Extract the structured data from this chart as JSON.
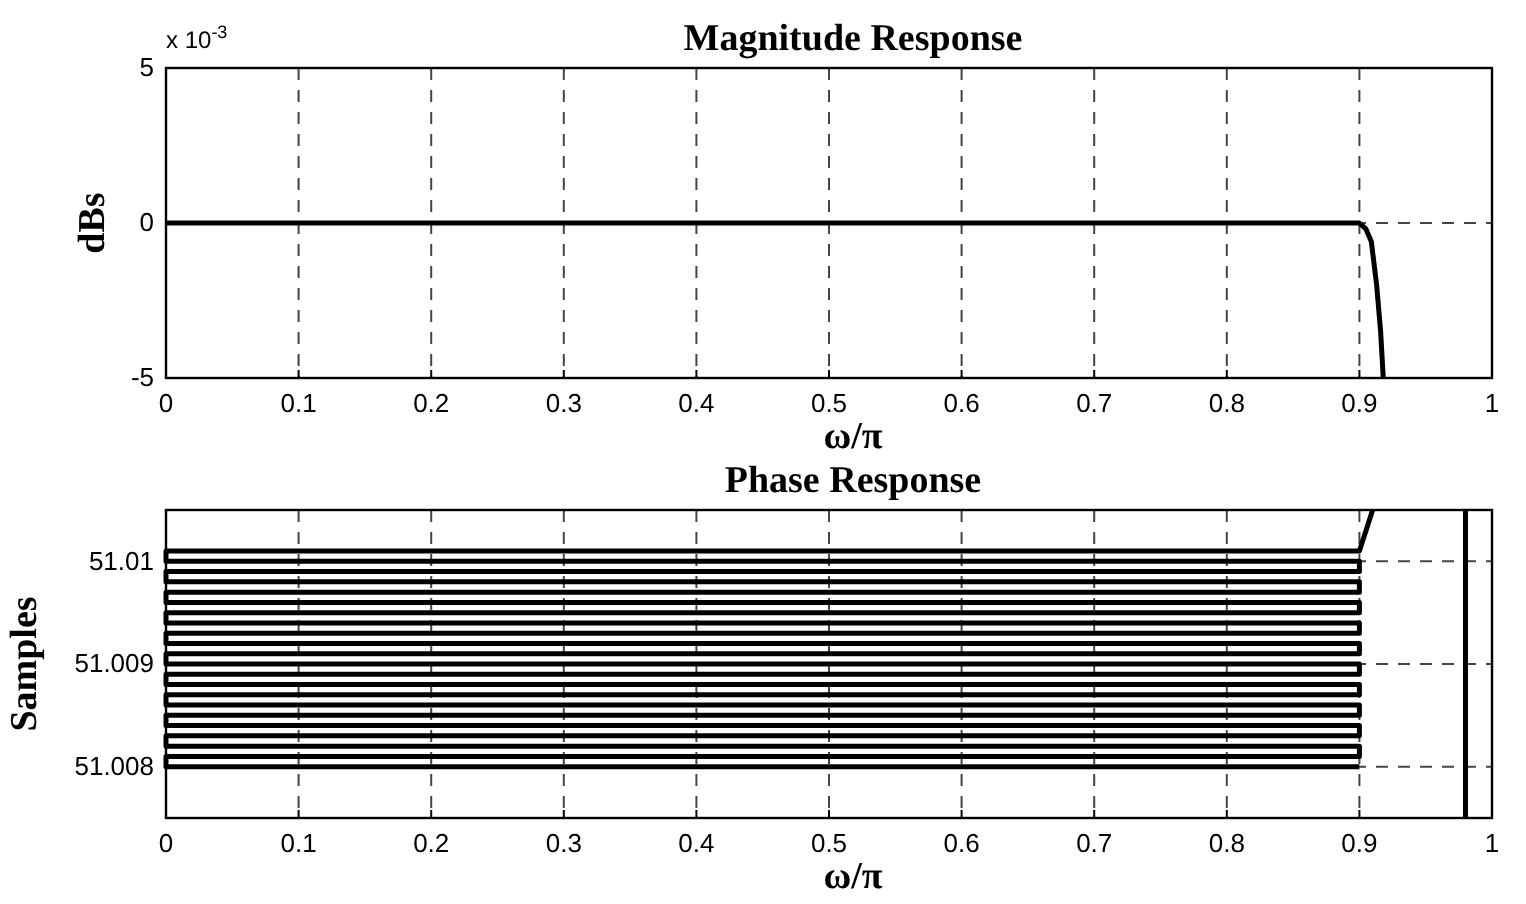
{
  "chart_data": [
    {
      "type": "line",
      "title": "Magnitude Response",
      "xlabel": "ω/π",
      "ylabel": "dBs",
      "annotations": [
        "x 10$^{-3}$"
      ],
      "xlim": [
        0,
        1
      ],
      "xticks": [
        0,
        0.1,
        0.2,
        0.3,
        0.4,
        0.5,
        0.6,
        0.7,
        0.8,
        0.9,
        1
      ],
      "ylim": [
        -5,
        5
      ],
      "yticks": [
        -5,
        0,
        5
      ],
      "grid": true,
      "line_style": "solid",
      "marker": "none",
      "series": [
        {
          "color": "#000000",
          "x": [
            0,
            0.9,
            0.905,
            0.909,
            0.913,
            0.916,
            0.918
          ],
          "values": [
            0,
            0,
            -0.2,
            -0.6,
            -2,
            -3.5,
            -5
          ]
        }
      ]
    },
    {
      "type": "line",
      "title": "Phase Response",
      "xlabel": "ω/π",
      "ylabel": "Samples",
      "xlim": [
        0,
        1
      ],
      "xticks": [
        0,
        0.1,
        0.2,
        0.3,
        0.4,
        0.5,
        0.6,
        0.7,
        0.8,
        0.9,
        1
      ],
      "ylim": [
        51.0075,
        51.0105
      ],
      "yticks": [
        51.008,
        51.009,
        51.01
      ],
      "grid": true,
      "line_style": "solid",
      "marker": "none",
      "series": [
        {
          "color": "#000000",
          "x": [
            0.9,
            0,
            0,
            0.9,
            0.9,
            0,
            0,
            0.9,
            0.9,
            0,
            0,
            0.9,
            0.9,
            0,
            0,
            0.9,
            0.9,
            0,
            0,
            0.9,
            0.9,
            0,
            0,
            0.9,
            0.9,
            0,
            0,
            0.9,
            0.9,
            0,
            0,
            0.9,
            0.9,
            0,
            0,
            0.9,
            0.9,
            0,
            0,
            0.9,
            0.9,
            0,
            0,
            0.9,
            0.91
          ],
          "values": [
            51.008,
            51.008,
            51.0081,
            51.0081,
            51.0082,
            51.0082,
            51.0083,
            51.0083,
            51.0084,
            51.0084,
            51.0085,
            51.0085,
            51.0086,
            51.0086,
            51.0087,
            51.0087,
            51.0088,
            51.0088,
            51.0089,
            51.0089,
            51.009,
            51.009,
            51.0091,
            51.0091,
            51.0092,
            51.0092,
            51.0093,
            51.0093,
            51.0094,
            51.0094,
            51.0095,
            51.0095,
            51.0096,
            51.0096,
            51.0097,
            51.0097,
            51.0098,
            51.0098,
            51.0099,
            51.0099,
            51.01,
            51.01,
            51.0101,
            51.0101,
            51.0105
          ]
        },
        {
          "color": "#000000",
          "x": [
            0.98,
            0.98
          ],
          "values": [
            51.0075,
            51.0105
          ]
        }
      ]
    }
  ]
}
